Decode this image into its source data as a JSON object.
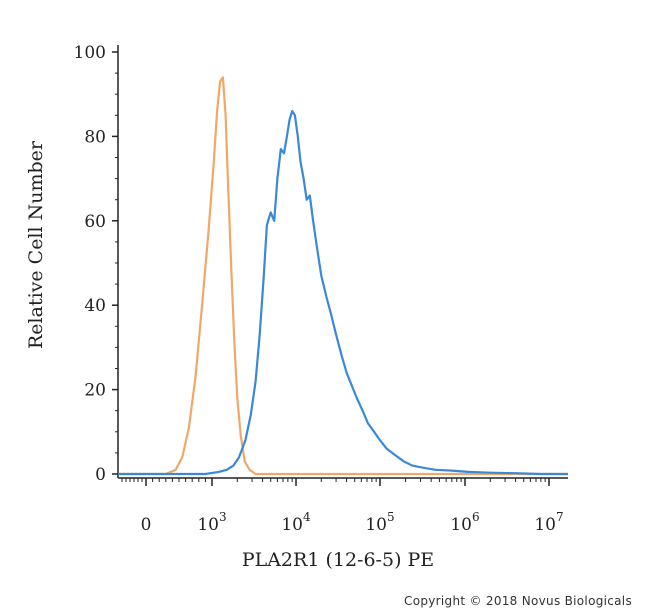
{
  "chart_data": {
    "type": "line",
    "title": "",
    "xlabel": "PLA2R1 (12-6-5) PE",
    "ylabel": "Relative Cell Number",
    "x_scale": "biexponential",
    "ylim": [
      0,
      100
    ],
    "y_ticks": [
      0,
      20,
      40,
      60,
      80,
      100
    ],
    "x_ticks": [
      {
        "value": 0,
        "base": "0",
        "exp": ""
      },
      {
        "value": 1000,
        "base": "10",
        "exp": "3"
      },
      {
        "value": 10000,
        "base": "10",
        "exp": "4"
      },
      {
        "value": 100000,
        "base": "10",
        "exp": "5"
      },
      {
        "value": 1000000,
        "base": "10",
        "exp": "6"
      },
      {
        "value": 10000000,
        "base": "10",
        "exp": "7"
      }
    ],
    "grid": false,
    "legend": "none",
    "series": [
      {
        "color": "#f0a868",
        "x": [
          300,
          450,
          550,
          650,
          750,
          850,
          950,
          1050,
          1150,
          1250,
          1350,
          1450,
          1550,
          1700,
          1850,
          2000,
          2200,
          2450,
          2800,
          3300
        ],
        "y": [
          0,
          1,
          4,
          11,
          23,
          40,
          58,
          74,
          86,
          93,
          94,
          85,
          69,
          48,
          31,
          18,
          9,
          3,
          1,
          0
        ]
      },
      {
        "color": "#3a88d8",
        "x": [
          900,
          1200,
          1500,
          1800,
          2100,
          2500,
          2900,
          3300,
          3700,
          4100,
          4500,
          5000,
          5500,
          6000,
          6600,
          7200,
          7800,
          8400,
          9000,
          9700,
          10500,
          11300,
          12300,
          13400,
          14600,
          16000,
          18000,
          20000,
          23000,
          26000,
          30000,
          35000,
          40000,
          46000,
          53000,
          62000,
          72000,
          85000,
          100000,
          120000,
          150000,
          190000,
          240000,
          320000,
          450000,
          700000,
          1100000,
          2000000,
          4000000,
          8000000
        ],
        "y": [
          0,
          0.5,
          1,
          2,
          4,
          8,
          14,
          22,
          33,
          46,
          59,
          62,
          60,
          70,
          77,
          76,
          80,
          84,
          86,
          85,
          80,
          74,
          70,
          65,
          66,
          60,
          53,
          47,
          42,
          38,
          33,
          28,
          24,
          21,
          18,
          15,
          12,
          10,
          8,
          6,
          4.5,
          3,
          2,
          1.5,
          1,
          0.8,
          0.5,
          0.3,
          0.2,
          0
        ]
      }
    ]
  },
  "footer": {
    "copyright": "Copyright © 2018 Novus Biologicals"
  }
}
